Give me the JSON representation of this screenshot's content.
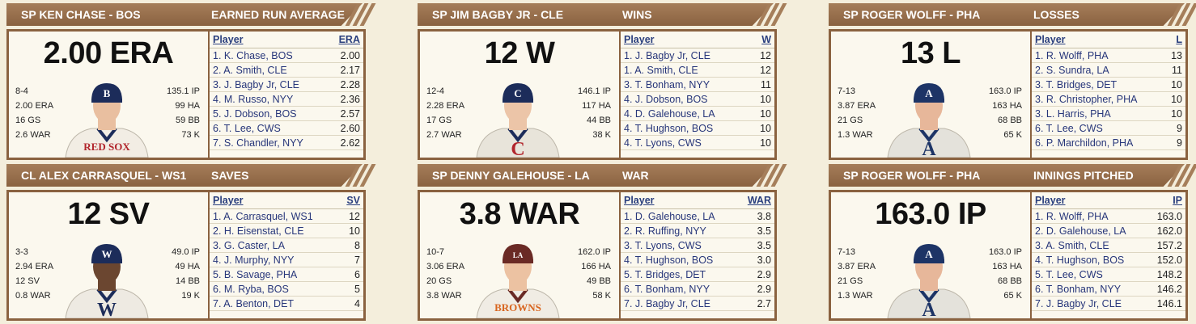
{
  "cards": [
    {
      "player_header": "SP KEN CHASE - BOS",
      "stat_header": "EARNED RUN AVERAGE",
      "big_value": "2.00 ERA",
      "left_stats": [
        "8-4",
        "2.00 ERA",
        "16 GS",
        "2.6 WAR"
      ],
      "right_stats": [
        "135.1 IP",
        "99 HA",
        "59 BB",
        "73 K"
      ],
      "cap_color": "#1c2c5a",
      "cap_letter": "B",
      "jersey_color": "#f2ede4",
      "jersey_text": "RED SOX",
      "jersey_text_color": "#b1252c",
      "skin": "#e9bfa0",
      "col_player": "Player",
      "col_stat": "ERA",
      "rows": [
        {
          "player": "1. K. Chase, BOS",
          "value": "2.00"
        },
        {
          "player": "2. A. Smith, CLE",
          "value": "2.17"
        },
        {
          "player": "3. J. Bagby Jr, CLE",
          "value": "2.28"
        },
        {
          "player": "4. M. Russo, NYY",
          "value": "2.36"
        },
        {
          "player": "5. J. Dobson, BOS",
          "value": "2.57"
        },
        {
          "player": "6. T. Lee, CWS",
          "value": "2.60"
        },
        {
          "player": "7. S. Chandler, NYY",
          "value": "2.62"
        }
      ]
    },
    {
      "player_header": "SP JIM BAGBY JR - CLE",
      "stat_header": "WINS",
      "big_value": "12 W",
      "left_stats": [
        "12-4",
        "2.28 ERA",
        "17 GS",
        "2.7 WAR"
      ],
      "right_stats": [
        "146.1 IP",
        "117 HA",
        "44 BB",
        "38 K"
      ],
      "cap_color": "#1c2c5a",
      "cap_letter": "C",
      "jersey_color": "#e8e4da",
      "jersey_text": "C",
      "jersey_text_color": "#b1252c",
      "skin": "#ecc5a8",
      "col_player": "Player",
      "col_stat": "W",
      "rows": [
        {
          "player": "1. J. Bagby Jr, CLE",
          "value": "12"
        },
        {
          "player": "1. A. Smith, CLE",
          "value": "12"
        },
        {
          "player": "3. T. Bonham, NYY",
          "value": "11"
        },
        {
          "player": "4. J. Dobson, BOS",
          "value": "10"
        },
        {
          "player": "4. D. Galehouse, LA",
          "value": "10"
        },
        {
          "player": "4. T. Hughson, BOS",
          "value": "10"
        },
        {
          "player": "4. T. Lyons, CWS",
          "value": "10"
        }
      ]
    },
    {
      "player_header": "SP ROGER WOLFF - PHA",
      "stat_header": "LOSSES",
      "big_value": "13 L",
      "left_stats": [
        "7-13",
        "3.87 ERA",
        "21 GS",
        "1.3 WAR"
      ],
      "right_stats": [
        "163.0 IP",
        "163 HA",
        "68 BB",
        "65 K"
      ],
      "cap_color": "#1d3466",
      "cap_letter": "A",
      "jersey_color": "#e4e2db",
      "jersey_text": "A",
      "jersey_text_color": "#1d3466",
      "skin": "#e7b79a",
      "col_player": "Player",
      "col_stat": "L",
      "rows": [
        {
          "player": "1. R. Wolff, PHA",
          "value": "13"
        },
        {
          "player": "2. S. Sundra, LA",
          "value": "11"
        },
        {
          "player": "3. T. Bridges, DET",
          "value": "10"
        },
        {
          "player": "3. R. Christopher, PHA",
          "value": "10"
        },
        {
          "player": "3. L. Harris, PHA",
          "value": "10"
        },
        {
          "player": "6. T. Lee, CWS",
          "value": "9"
        },
        {
          "player": "6. P. Marchildon, PHA",
          "value": "9"
        }
      ]
    },
    {
      "player_header": "CL ALEX CARRASQUEL - WS1",
      "stat_header": "SAVES",
      "big_value": "12 SV",
      "left_stats": [
        "3-3",
        "2.94 ERA",
        "12 SV",
        "0.8 WAR"
      ],
      "right_stats": [
        "49.0 IP",
        "49 HA",
        "14 BB",
        "19 K"
      ],
      "cap_color": "#1c2c5a",
      "cap_letter": "W",
      "jersey_color": "#eeeae2",
      "jersey_text": "W",
      "jersey_text_color": "#1c2c5a",
      "skin": "#6b4630",
      "col_player": "Player",
      "col_stat": "SV",
      "rows": [
        {
          "player": "1. A. Carrasquel, WS1",
          "value": "12"
        },
        {
          "player": "2. H. Eisenstat, CLE",
          "value": "10"
        },
        {
          "player": "3. G. Caster, LA",
          "value": "8"
        },
        {
          "player": "4. J. Murphy, NYY",
          "value": "7"
        },
        {
          "player": "5. B. Savage, PHA",
          "value": "6"
        },
        {
          "player": "6. M. Ryba, BOS",
          "value": "5"
        },
        {
          "player": "7. A. Benton, DET",
          "value": "4"
        }
      ]
    },
    {
      "player_header": "SP DENNY GALEHOUSE - LA",
      "stat_header": "WAR",
      "big_value": "3.8 WAR",
      "left_stats": [
        "10-7",
        "3.06 ERA",
        "20 GS",
        "3.8 WAR"
      ],
      "right_stats": [
        "162.0 IP",
        "166 HA",
        "49 BB",
        "58 K"
      ],
      "cap_color": "#6a2a25",
      "cap_letter": "LA",
      "jersey_color": "#f0ece4",
      "jersey_text": "BROWNS",
      "jersey_text_color": "#d8651f",
      "skin": "#ecc2a2",
      "col_player": "Player",
      "col_stat": "WAR",
      "rows": [
        {
          "player": "1. D. Galehouse, LA",
          "value": "3.8"
        },
        {
          "player": "2. R. Ruffing, NYY",
          "value": "3.5"
        },
        {
          "player": "3. T. Lyons, CWS",
          "value": "3.5"
        },
        {
          "player": "4. T. Hughson, BOS",
          "value": "3.0"
        },
        {
          "player": "5. T. Bridges, DET",
          "value": "2.9"
        },
        {
          "player": "6. T. Bonham, NYY",
          "value": "2.9"
        },
        {
          "player": "7. J. Bagby Jr, CLE",
          "value": "2.7"
        }
      ]
    },
    {
      "player_header": "SP ROGER WOLFF - PHA",
      "stat_header": "INNINGS PITCHED",
      "big_value": "163.0 IP",
      "left_stats": [
        "7-13",
        "3.87 ERA",
        "21 GS",
        "1.3 WAR"
      ],
      "right_stats": [
        "163.0 IP",
        "163 HA",
        "68 BB",
        "65 K"
      ],
      "cap_color": "#1d3466",
      "cap_letter": "A",
      "jersey_color": "#e4e2db",
      "jersey_text": "A",
      "jersey_text_color": "#1d3466",
      "skin": "#e7b79a",
      "col_player": "Player",
      "col_stat": "IP",
      "rows": [
        {
          "player": "1. R. Wolff, PHA",
          "value": "163.0"
        },
        {
          "player": "2. D. Galehouse, LA",
          "value": "162.0"
        },
        {
          "player": "3. A. Smith, CLE",
          "value": "157.2"
        },
        {
          "player": "4. T. Hughson, BOS",
          "value": "152.0"
        },
        {
          "player": "5. T. Lee, CWS",
          "value": "148.2"
        },
        {
          "player": "6. T. Bonham, NYY",
          "value": "146.2"
        },
        {
          "player": "7. J. Bagby Jr, CLE",
          "value": "146.1"
        }
      ]
    }
  ]
}
